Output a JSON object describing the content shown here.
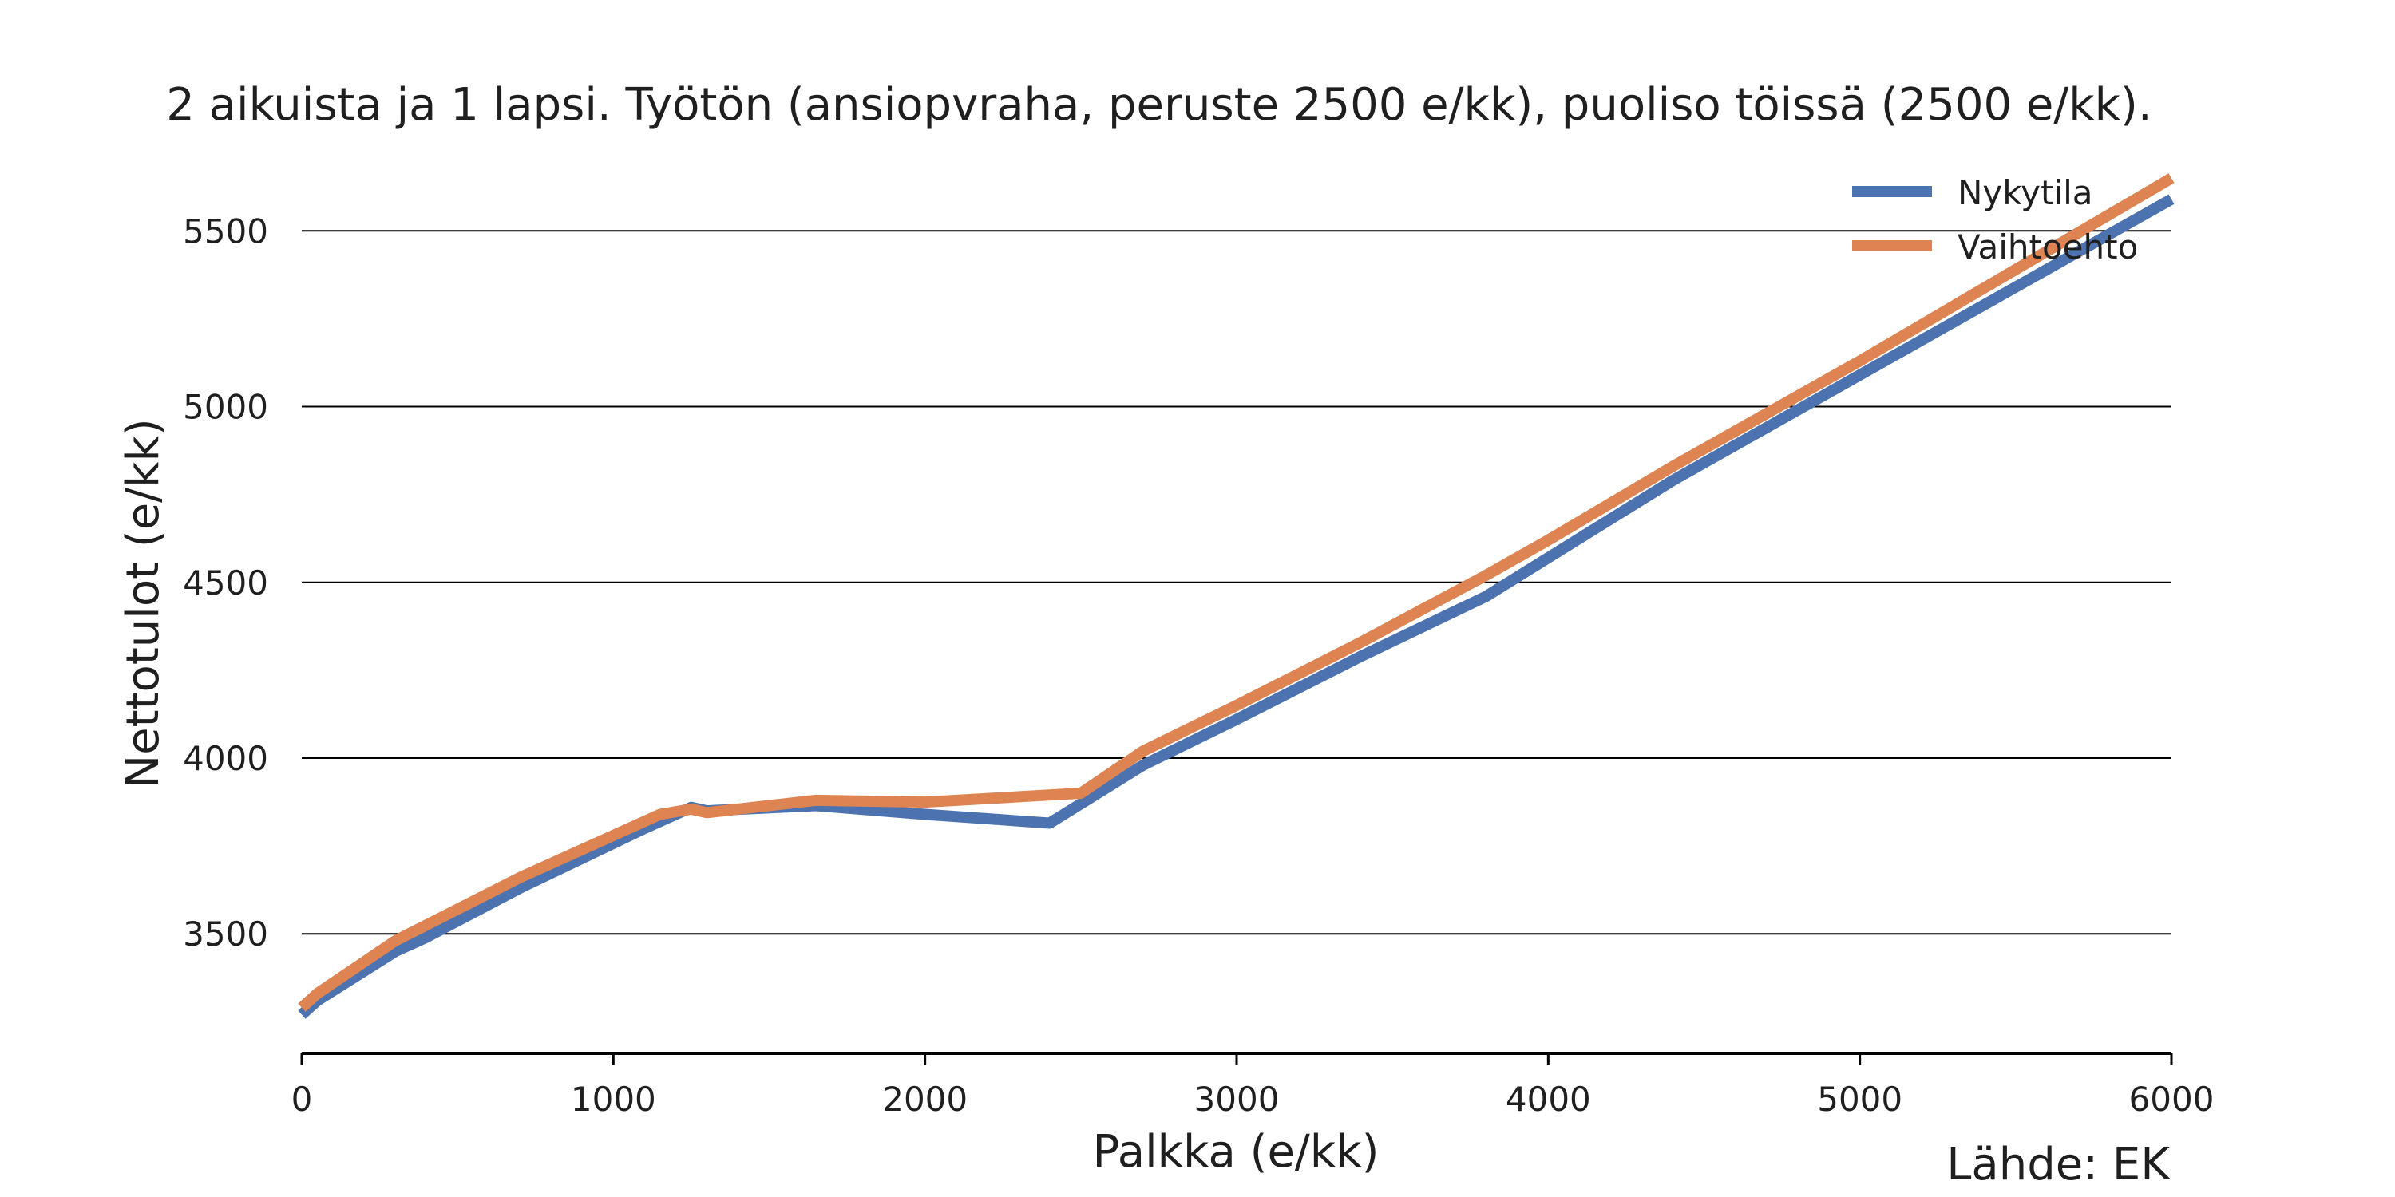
{
  "chart_data": {
    "type": "line",
    "title": "2 aikuista ja 1 lapsi. Työtön (ansiopvraha, peruste 2500 e/kk), puoliso töissä (2500 e/kk).",
    "xlabel": "Palkka (e/kk)",
    "ylabel": "Nettotulot (e/kk)",
    "xlim": [
      0,
      6000
    ],
    "ylim": [
      3160,
      5680
    ],
    "xticks": [
      0,
      1000,
      2000,
      3000,
      4000,
      5000,
      6000
    ],
    "yticks": [
      3500,
      4000,
      4500,
      5000,
      5500
    ],
    "grid": "horizontal",
    "legend_position": "top-right",
    "source": "Lähde: EK",
    "colors": {
      "Nykytila": "#4c72b0",
      "Vaihtoehto": "#dd8452"
    },
    "series": [
      {
        "name": "Nykytila",
        "x": [
          0,
          50,
          300,
          400,
          700,
          1100,
          1250,
          1300,
          1650,
          2000,
          2400,
          2700,
          3000,
          3400,
          3800,
          4000,
          4400,
          5000,
          6000
        ],
        "y": [
          3270,
          3310,
          3450,
          3490,
          3630,
          3800,
          3860,
          3850,
          3865,
          3840,
          3815,
          3980,
          4110,
          4290,
          4460,
          4570,
          4790,
          5090,
          5590
        ]
      },
      {
        "name": "Vaihtoehto",
        "x": [
          0,
          50,
          300,
          700,
          1000,
          1150,
          1250,
          1300,
          1650,
          2000,
          2500,
          2700,
          3000,
          3400,
          3800,
          4000,
          4400,
          5000,
          6000
        ],
        "y": [
          3290,
          3330,
          3480,
          3660,
          3780,
          3840,
          3855,
          3845,
          3880,
          3875,
          3900,
          4020,
          4150,
          4330,
          4520,
          4620,
          4830,
          5130,
          5650
        ]
      }
    ]
  }
}
